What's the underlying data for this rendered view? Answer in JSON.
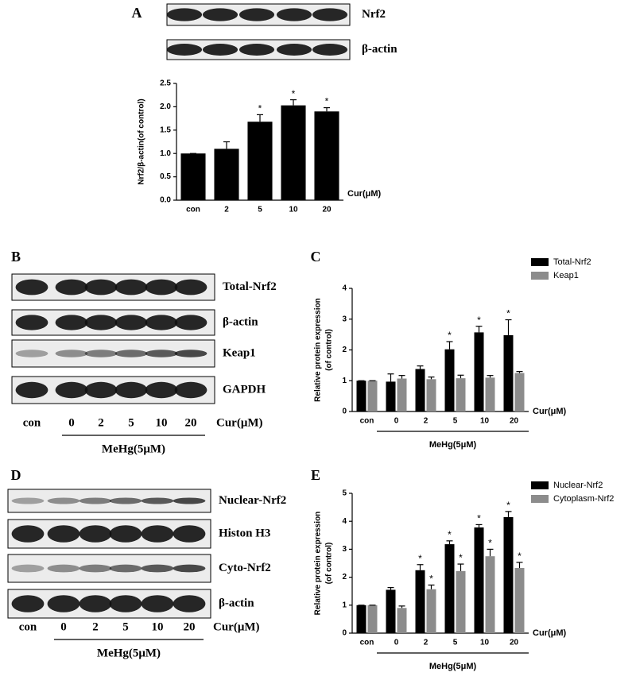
{
  "blots": [
    {
      "panel": "A",
      "bands": [
        "Nrf2",
        "β-actin"
      ]
    },
    {
      "panel": "B",
      "bands": [
        "Total-Nrf2",
        "β-actin",
        "Keap1",
        "GAPDH"
      ],
      "lanes": [
        "con",
        "0",
        "2",
        "5",
        "10",
        "20"
      ],
      "x_label": "Cur(μM)",
      "treatment": "MeHg(5μM)"
    },
    {
      "panel": "D",
      "bands": [
        "Nuclear-Nrf2",
        "Histon H3",
        "Cyto-Nrf2",
        "β-actin"
      ],
      "lanes": [
        "con",
        "0",
        "2",
        "5",
        "10",
        "20"
      ],
      "x_label": "Cur(μM)",
      "treatment": "MeHg(5μM)"
    }
  ],
  "chart_data": [
    {
      "type": "bar",
      "y_label": [
        "Nrf2/β-actin(of control)"
      ],
      "x_label": "Cur(μM)",
      "categories": [
        "con",
        "2",
        "5",
        "10",
        "20"
      ],
      "values": [
        1.0,
        1.1,
        1.68,
        2.03,
        1.9
      ],
      "errors": [
        0,
        0.15,
        0.15,
        0.12,
        0.08
      ],
      "significance": [
        null,
        null,
        "*",
        "*",
        "*"
      ],
      "color": "#000000",
      "ylim": [
        0,
        2.5
      ],
      "yticks": [
        {
          "value": 0,
          "label": "0.0"
        },
        0.5,
        {
          "value": 1,
          "label": "1.0"
        },
        1.5,
        {
          "value": 2,
          "label": "2.0"
        },
        2.5
      ]
    },
    {
      "type": "bar",
      "panel": "C",
      "y_label": [
        "Relative protein expression",
        "(of control)"
      ],
      "x_label": "Cur(μM)",
      "treatment": "MeHg(5μM)",
      "categories": [
        "con",
        "0",
        "2",
        "5",
        "10",
        "20"
      ],
      "series": [
        {
          "name": "Total-Nrf2",
          "color": "#000000",
          "values": [
            1,
            0.97,
            1.38,
            2.02,
            2.57,
            2.48
          ],
          "errors": [
            0,
            0.25,
            0.1,
            0.25,
            0.2,
            0.5
          ],
          "significance": [
            null,
            null,
            null,
            "*",
            "*",
            "*"
          ]
        },
        {
          "name": "Keap1",
          "color": "#8c8c8c",
          "values": [
            1,
            1.07,
            1.05,
            1.08,
            1.1,
            1.25
          ],
          "errors": [
            0,
            0.1,
            0.07,
            0.1,
            0.07,
            0.05
          ]
        }
      ],
      "ylim": [
        0,
        4
      ],
      "yticks": [
        0,
        1,
        2,
        3,
        4
      ]
    },
    {
      "type": "bar",
      "panel": "E",
      "y_label": [
        "Relative protein expression",
        "(of control)"
      ],
      "x_label": "Cur(μM)",
      "treatment": "MeHg(5μM)",
      "categories": [
        "con",
        "0",
        "2",
        "5",
        "10",
        "20"
      ],
      "series": [
        {
          "name": "Nuclear-Nrf2",
          "color": "#000000",
          "values": [
            1,
            1.55,
            2.25,
            3.18,
            3.78,
            4.15
          ],
          "errors": [
            0,
            0.08,
            0.2,
            0.12,
            0.1,
            0.2
          ],
          "significance": [
            null,
            null,
            "*",
            "*",
            "*",
            "*"
          ]
        },
        {
          "name": "Cytoplasm-Nrf2",
          "color": "#8c8c8c",
          "values": [
            1,
            0.9,
            1.57,
            2.22,
            2.75,
            2.33
          ],
          "errors": [
            0,
            0.07,
            0.15,
            0.25,
            0.25,
            0.2
          ],
          "significance": [
            null,
            null,
            "*",
            "*",
            "*",
            "*"
          ]
        }
      ],
      "ylim": [
        0,
        5
      ],
      "yticks": [
        0,
        1,
        2,
        3,
        4,
        5
      ]
    }
  ]
}
